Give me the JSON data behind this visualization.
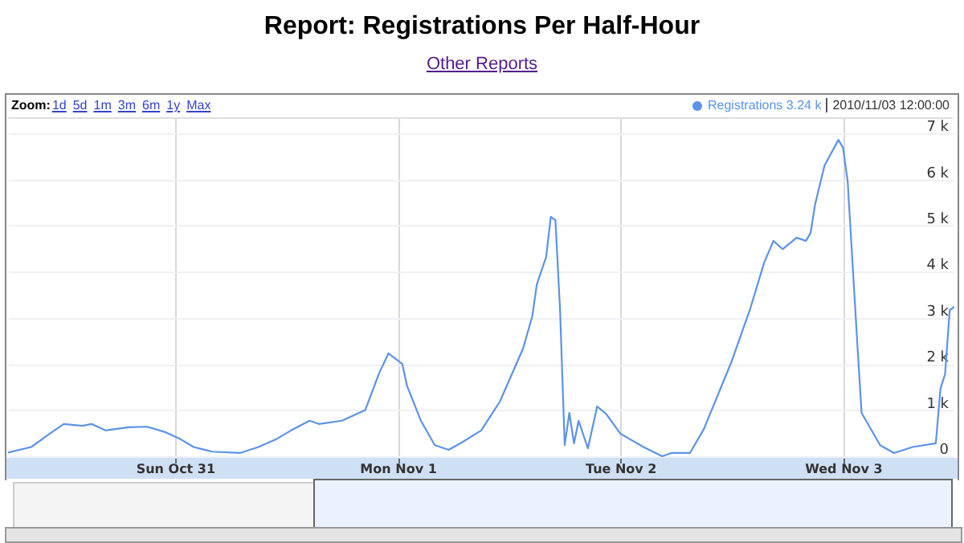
{
  "chart_data": {
    "type": "line",
    "title": "Report: Registrations Per Half-Hour",
    "subtitle": "Other Reports",
    "annotations": [
      "Zoom:",
      "1d",
      "5d",
      "1m",
      "3m",
      "6m",
      "1y",
      "Max",
      "3.24 k",
      "2010/11/03 12:00:00"
    ],
    "x": [
      "2010-10-30T06:00",
      "2010-10-30T08:30",
      "2010-10-30T10:30",
      "2010-10-30T12:00",
      "2010-10-30T14:00",
      "2010-10-30T15:00",
      "2010-10-30T16:30",
      "2010-10-30T19:00",
      "2010-10-30T21:00",
      "2010-10-30T23:00",
      "2010-10-31T00:30",
      "2010-10-31T02:00",
      "2010-10-31T04:00",
      "2010-10-31T07:00",
      "2010-10-31T09:00",
      "2010-10-31T11:00",
      "2010-10-31T12:30",
      "2010-10-31T14:30",
      "2010-10-31T15:30",
      "2010-10-31T18:00",
      "2010-10-31T20:30",
      "2010-10-31T22:00",
      "2010-10-31T23:00",
      "2010-11-01T00:30",
      "2010-11-01T01:00",
      "2010-11-01T02:30",
      "2010-11-01T04:00",
      "2010-11-01T05:30",
      "2010-11-01T07:00",
      "2010-11-01T09:00",
      "2010-11-01T11:00",
      "2010-11-01T13:30",
      "2010-11-01T14:30",
      "2010-11-01T15:00",
      "2010-11-01T16:00",
      "2010-11-01T16:30",
      "2010-11-01T17:00",
      "2010-11-01T17:30",
      "2010-11-01T18:00",
      "2010-11-01T18:30",
      "2010-11-01T19:00",
      "2010-11-01T19:30",
      "2010-11-01T20:30",
      "2010-11-01T21:30",
      "2010-11-01T22:30",
      "2010-11-02T00:00",
      "2010-11-02T02:30",
      "2010-11-02T04:30",
      "2010-11-02T05:30",
      "2010-11-02T07:30",
      "2010-11-02T09:00",
      "2010-11-02T12:00",
      "2010-11-02T14:00",
      "2010-11-02T15:30",
      "2010-11-02T16:30",
      "2010-11-02T17:30",
      "2010-11-02T19:00",
      "2010-11-02T20:00",
      "2010-11-02T20:30",
      "2010-11-02T21:00",
      "2010-11-02T22:00",
      "2010-11-02T23:30",
      "2010-11-03T00:00",
      "2010-11-03T00:30",
      "2010-11-03T01:30",
      "2010-11-03T02:00",
      "2010-11-03T04:00",
      "2010-11-03T05:30",
      "2010-11-03T07:30",
      "2010-11-03T10:00",
      "2010-11-03T10:30",
      "2010-11-03T11:00",
      "2010-11-03T11:30",
      "2010-11-03T12:00"
    ],
    "series": [
      {
        "name": "Registrations",
        "color": "#5b93e8",
        "values": [
          80,
          200,
          490,
          700,
          660,
          700,
          560,
          630,
          640,
          520,
          380,
          200,
          100,
          70,
          200,
          380,
          560,
          770,
          700,
          770,
          1000,
          1800,
          2230,
          2000,
          1530,
          770,
          240,
          140,
          310,
          560,
          1180,
          2330,
          3030,
          3730,
          4320,
          5190,
          5120,
          3170,
          240,
          940,
          280,
          770,
          170,
          1080,
          910,
          490,
          200,
          0,
          70,
          70,
          590,
          2060,
          3200,
          4200,
          4670,
          4490,
          4740,
          4670,
          4840,
          5470,
          6300,
          6860,
          6690,
          5960,
          2580,
          940,
          240,
          70,
          200,
          280,
          1460,
          1780,
          3170,
          3240
        ]
      }
    ],
    "xlim": [
      "2010-10-30T06:00",
      "2010-11-03T12:00"
    ],
    "xticks": [
      {
        "value": "2010-10-31T00:00",
        "label": "Sun Oct 31"
      },
      {
        "value": "2010-11-01T00:00",
        "label": "Mon Nov 1"
      },
      {
        "value": "2010-11-02T00:00",
        "label": "Tue Nov 2"
      },
      {
        "value": "2010-11-03T00:00",
        "label": "Wed Nov 3"
      }
    ],
    "ylim": [
      -35,
      7350
    ],
    "yticks": [
      {
        "value": 0,
        "label": "0"
      },
      {
        "value": 1000,
        "label": "1 k"
      },
      {
        "value": 2000,
        "label": "2 k"
      },
      {
        "value": 3000,
        "label": "3 k"
      },
      {
        "value": 4000,
        "label": "4 k"
      },
      {
        "value": 5000,
        "label": "5 k"
      },
      {
        "value": 6000,
        "label": "6 k"
      },
      {
        "value": 7000,
        "label": "7 k"
      }
    ],
    "grid": true,
    "legend": "top right",
    "marker": "none",
    "line_style": "solid"
  }
}
